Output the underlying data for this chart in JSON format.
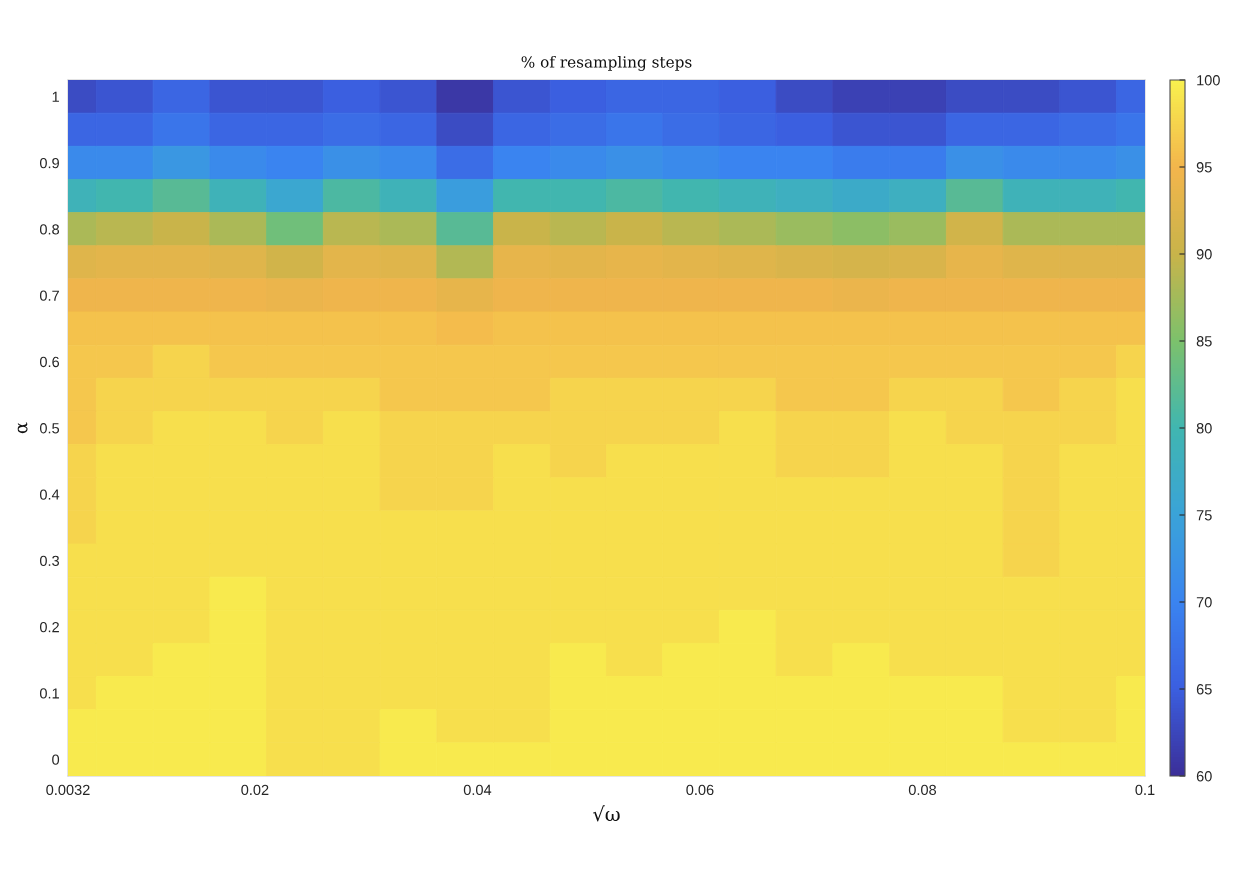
{
  "chart_data": {
    "type": "heatmap",
    "title": "% of resampling steps",
    "xlabel": "√ω",
    "ylabel": "α",
    "x": [
      0.0032,
      0.0083,
      0.0134,
      0.0185,
      0.0236,
      0.0287,
      0.0338,
      0.0389,
      0.044,
      0.0491,
      0.0541,
      0.0592,
      0.0643,
      0.0694,
      0.0745,
      0.0796,
      0.0847,
      0.0898,
      0.0949,
      0.1
    ],
    "y_categories": [
      "1",
      null,
      "0.9",
      null,
      "0.8",
      null,
      "0.7",
      null,
      "0.6",
      null,
      "0.5",
      null,
      "0.4",
      null,
      "0.3",
      null,
      "0.2",
      null,
      "0.1",
      null,
      "0"
    ],
    "cells": [
      [
        63,
        64,
        66,
        64,
        64,
        65,
        64,
        61,
        64,
        65,
        66,
        66,
        65,
        63,
        62,
        62,
        63,
        63,
        64,
        66
      ],
      [
        66,
        66,
        68,
        66,
        66,
        67,
        66,
        63,
        66,
        67,
        68,
        67,
        66,
        65,
        64,
        64,
        66,
        66,
        67,
        68
      ],
      [
        71,
        71,
        73,
        71,
        70,
        72,
        71,
        67,
        70,
        71,
        72,
        71,
        70,
        70,
        69,
        69,
        72,
        71,
        71,
        72
      ],
      [
        79,
        80,
        82,
        79,
        76,
        81,
        79,
        74,
        80,
        80,
        81,
        80,
        79,
        78,
        77,
        78,
        82,
        79,
        79,
        80
      ],
      [
        88,
        89,
        90,
        88,
        84,
        89,
        88,
        82,
        90,
        89,
        90,
        89,
        88,
        87,
        86,
        87,
        91,
        88,
        88,
        88
      ],
      [
        92.5,
        93,
        93,
        92.5,
        91,
        93,
        92.5,
        88.5,
        93.5,
        93,
        93.5,
        93,
        92.5,
        92,
        91.5,
        92,
        93.5,
        92.5,
        92.5,
        92.5
      ],
      [
        94.5,
        94.5,
        94.5,
        94.5,
        94,
        94.5,
        94.5,
        93.5,
        94.5,
        94.5,
        94.5,
        94.5,
        94.5,
        94.5,
        94,
        94.5,
        94.5,
        94.5,
        94.5,
        94.5
      ],
      [
        96,
        96,
        96,
        96,
        96,
        96,
        96,
        95.5,
        96,
        96,
        96,
        96,
        96,
        96,
        96,
        96,
        96,
        96,
        96,
        96
      ],
      [
        96.5,
        96.5,
        97.5,
        96.5,
        96.5,
        96.5,
        96.5,
        96.5,
        96.5,
        96.5,
        96.5,
        96.5,
        96.5,
        96.5,
        96.5,
        96.5,
        96.5,
        96.5,
        96.5,
        97.5
      ],
      [
        96.5,
        97.5,
        97.5,
        97.5,
        97.5,
        97.5,
        96.5,
        96.5,
        96.5,
        97.5,
        97.5,
        97.5,
        97.5,
        96.5,
        96.5,
        97.5,
        97.5,
        96.5,
        97.5,
        98.5
      ],
      [
        96.5,
        97.5,
        98.5,
        98.5,
        97.5,
        98.5,
        97.5,
        97.5,
        97.5,
        97.5,
        97.5,
        97.5,
        98.5,
        97.5,
        97.5,
        98.5,
        97.5,
        97.5,
        97.5,
        98.5
      ],
      [
        97.5,
        98.5,
        98.5,
        98.5,
        98.5,
        98.5,
        97.5,
        97.5,
        98.5,
        97.5,
        98.5,
        98.5,
        98.5,
        97.5,
        97.5,
        98.5,
        98.5,
        97.5,
        98.5,
        98.5
      ],
      [
        97.5,
        98.5,
        98.5,
        98.5,
        98.5,
        98.5,
        97.5,
        97.5,
        98.5,
        98.5,
        98.5,
        98.5,
        98.5,
        98.5,
        98.5,
        98.5,
        98.5,
        97.5,
        98.5,
        98.5
      ],
      [
        97.5,
        98.5,
        98.5,
        98.5,
        98.5,
        98.5,
        98.5,
        98.5,
        98.5,
        98.5,
        98.5,
        98.5,
        98.5,
        98.5,
        98.5,
        98.5,
        98.5,
        97.5,
        98.5,
        98.5
      ],
      [
        98.5,
        98.5,
        98.5,
        98.5,
        98.5,
        98.5,
        98.5,
        98.5,
        98.5,
        98.5,
        98.5,
        98.5,
        98.5,
        98.5,
        98.5,
        98.5,
        98.5,
        97.5,
        98.5,
        98.5
      ],
      [
        98.5,
        98.5,
        98.5,
        99.5,
        98.5,
        98.5,
        98.5,
        98.5,
        98.5,
        98.5,
        98.5,
        98.5,
        98.5,
        98.5,
        98.5,
        98.5,
        98.5,
        98.5,
        98.5,
        98.5
      ],
      [
        98.5,
        98.5,
        98.5,
        99.5,
        98.5,
        98.5,
        98.5,
        98.5,
        98.5,
        98.5,
        98.5,
        98.5,
        99.5,
        98.5,
        98.5,
        98.5,
        98.5,
        98.5,
        98.5,
        98.5
      ],
      [
        98.5,
        98.5,
        99.5,
        99.5,
        98.5,
        98.5,
        98.5,
        98.5,
        98.5,
        99.5,
        98.5,
        99.5,
        99.5,
        98.5,
        99.5,
        98.5,
        98.5,
        98.5,
        98.5,
        98.5
      ],
      [
        98.5,
        99.5,
        99.5,
        99.5,
        98.5,
        98.5,
        98.5,
        98.5,
        98.5,
        99.5,
        99.5,
        99.5,
        99.5,
        99.5,
        99.5,
        99.5,
        99.5,
        98.5,
        98.5,
        99.5
      ],
      [
        99.5,
        99.5,
        99.5,
        99.5,
        98.5,
        98.5,
        99.5,
        98.5,
        98.5,
        99.5,
        99.5,
        99.5,
        99.5,
        99.5,
        99.5,
        99.5,
        99.5,
        98.5,
        98.5,
        99.5
      ],
      [
        99.5,
        99.5,
        99.5,
        99.5,
        98.5,
        98.5,
        99.5,
        99.5,
        99.5,
        99.5,
        99.5,
        99.5,
        99.5,
        99.5,
        99.5,
        99.5,
        99.5,
        99.5,
        99.5,
        99.5
      ]
    ],
    "colors": [
      "#3b2f99",
      "#3b5fe0",
      "#3a84f0",
      "#3aa3d8",
      "#40b6b0",
      "#7cc16c",
      "#c8b44a",
      "#f3b54c",
      "#f8f04e"
    ],
    "clim": [
      60,
      100
    ],
    "cticks": [
      60,
      65,
      70,
      75,
      80,
      85,
      90,
      95,
      100
    ],
    "xlim": [
      0.0032,
      0.1
    ],
    "xticks": [
      0.0032,
      0.02,
      0.04,
      0.06,
      0.08,
      0.1
    ]
  }
}
